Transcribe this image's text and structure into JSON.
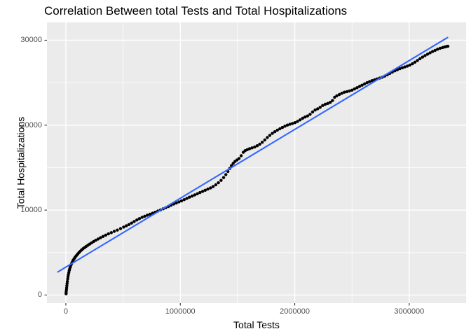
{
  "colors": {
    "background": "#FFFFFF",
    "panel_background": "#EBEBEB",
    "gridline": "#FFFFFF",
    "tick_mark": "#333333",
    "tick_label": "#4D4D4D",
    "axis_title": "#000000",
    "title": "#000000",
    "point": "#000000",
    "fit_line": "#3366FF"
  },
  "chart_data": {
    "type": "scatter",
    "title": "Correlation Between total Tests and Total Hospitalizations",
    "xlabel": "Total Tests",
    "ylabel": "Total Hospitalizations",
    "legend_position": "none",
    "grid": "white major and minor gridlines on gray panel",
    "xlim": [
      -165000,
      3500000
    ],
    "ylim": [
      -950,
      32100
    ],
    "x_ticks": {
      "values": [
        0,
        1000000,
        2000000,
        3000000
      ],
      "labels": [
        "0",
        "1000000",
        "2000000",
        "3000000"
      ]
    },
    "y_ticks": {
      "values": [
        0,
        10000,
        20000,
        30000
      ],
      "labels": [
        "0",
        "10000",
        "20000",
        "30000"
      ]
    },
    "x_minor_ticks": [
      500000,
      1500000,
      2500000,
      3500000
    ],
    "y_minor_ticks": [
      5000,
      15000,
      25000
    ],
    "series": [
      {
        "name": "observations",
        "type": "point",
        "color": "#000000",
        "point_radius": 2.2,
        "points": [
          [
            2000,
            150
          ],
          [
            3000,
            350
          ],
          [
            5000,
            600
          ],
          [
            7000,
            850
          ],
          [
            9000,
            1100
          ],
          [
            11000,
            1350
          ],
          [
            13000,
            1600
          ],
          [
            16000,
            1900
          ],
          [
            19000,
            2150
          ],
          [
            22000,
            2400
          ],
          [
            26000,
            2650
          ],
          [
            30000,
            2900
          ],
          [
            34000,
            3100
          ],
          [
            39000,
            3300
          ],
          [
            44000,
            3500
          ],
          [
            50000,
            3700
          ],
          [
            57000,
            3900
          ],
          [
            64000,
            4100
          ],
          [
            72000,
            4270
          ],
          [
            80000,
            4420
          ],
          [
            88000,
            4570
          ],
          [
            96000,
            4700
          ],
          [
            105000,
            4850
          ],
          [
            115000,
            5000
          ],
          [
            125000,
            5150
          ],
          [
            137000,
            5300
          ],
          [
            150000,
            5450
          ],
          [
            163000,
            5580
          ],
          [
            177000,
            5720
          ],
          [
            192000,
            5860
          ],
          [
            208000,
            6000
          ],
          [
            225000,
            6150
          ],
          [
            243000,
            6300
          ],
          [
            262000,
            6450
          ],
          [
            282000,
            6600
          ],
          [
            303000,
            6750
          ],
          [
            325000,
            6900
          ],
          [
            348000,
            7050
          ],
          [
            372000,
            7200
          ],
          [
            397000,
            7350
          ],
          [
            423000,
            7500
          ],
          [
            450000,
            7650
          ],
          [
            478000,
            7820
          ],
          [
            505000,
            8000
          ],
          [
            528000,
            8150
          ],
          [
            551000,
            8300
          ],
          [
            574000,
            8470
          ],
          [
            597000,
            8650
          ],
          [
            620000,
            8830
          ],
          [
            643000,
            9000
          ],
          [
            666000,
            9150
          ],
          [
            689000,
            9280
          ],
          [
            712000,
            9400
          ],
          [
            735000,
            9510
          ],
          [
            758000,
            9630
          ],
          [
            781000,
            9760
          ],
          [
            804000,
            9890
          ],
          [
            827000,
            10020
          ],
          [
            850000,
            10150
          ],
          [
            873000,
            10280
          ],
          [
            896000,
            10420
          ],
          [
            919000,
            10570
          ],
          [
            942000,
            10710
          ],
          [
            965000,
            10840
          ],
          [
            988000,
            10960
          ],
          [
            1011000,
            11090
          ],
          [
            1034000,
            11230
          ],
          [
            1057000,
            11380
          ],
          [
            1080000,
            11520
          ],
          [
            1103000,
            11650
          ],
          [
            1126000,
            11780
          ],
          [
            1149000,
            11920
          ],
          [
            1172000,
            12060
          ],
          [
            1195000,
            12200
          ],
          [
            1218000,
            12340
          ],
          [
            1241000,
            12480
          ],
          [
            1264000,
            12620
          ],
          [
            1287000,
            12780
          ],
          [
            1310000,
            12980
          ],
          [
            1333000,
            13220
          ],
          [
            1356000,
            13500
          ],
          [
            1378000,
            13830
          ],
          [
            1398000,
            14180
          ],
          [
            1416000,
            14550
          ],
          [
            1432000,
            14900
          ],
          [
            1447000,
            15230
          ],
          [
            1462000,
            15500
          ],
          [
            1478000,
            15720
          ],
          [
            1495000,
            15900
          ],
          [
            1513000,
            16080
          ],
          [
            1532000,
            16400
          ],
          [
            1550000,
            16800
          ],
          [
            1567000,
            17000
          ],
          [
            1585000,
            17120
          ],
          [
            1605000,
            17220
          ],
          [
            1627000,
            17320
          ],
          [
            1650000,
            17440
          ],
          [
            1672000,
            17580
          ],
          [
            1694000,
            17760
          ],
          [
            1716000,
            17990
          ],
          [
            1738000,
            18260
          ],
          [
            1760000,
            18540
          ],
          [
            1782000,
            18800
          ],
          [
            1804000,
            19030
          ],
          [
            1826000,
            19230
          ],
          [
            1848000,
            19410
          ],
          [
            1870000,
            19570
          ],
          [
            1892000,
            19730
          ],
          [
            1914000,
            19880
          ],
          [
            1936000,
            20010
          ],
          [
            1958000,
            20110
          ],
          [
            1980000,
            20200
          ],
          [
            2002000,
            20300
          ],
          [
            2024000,
            20440
          ],
          [
            2046000,
            20620
          ],
          [
            2068000,
            20810
          ],
          [
            2090000,
            20960
          ],
          [
            2112000,
            21080
          ],
          [
            2134000,
            21280
          ],
          [
            2156000,
            21550
          ],
          [
            2178000,
            21780
          ],
          [
            2200000,
            21920
          ],
          [
            2222000,
            22100
          ],
          [
            2244000,
            22320
          ],
          [
            2266000,
            22460
          ],
          [
            2288000,
            22560
          ],
          [
            2310000,
            22690
          ],
          [
            2330000,
            22900
          ],
          [
            2348000,
            23280
          ],
          [
            2368000,
            23460
          ],
          [
            2390000,
            23610
          ],
          [
            2412000,
            23760
          ],
          [
            2434000,
            23880
          ],
          [
            2456000,
            23950
          ],
          [
            2478000,
            24020
          ],
          [
            2500000,
            24120
          ],
          [
            2522000,
            24260
          ],
          [
            2544000,
            24410
          ],
          [
            2566000,
            24560
          ],
          [
            2588000,
            24710
          ],
          [
            2610000,
            24860
          ],
          [
            2632000,
            25000
          ],
          [
            2654000,
            25130
          ],
          [
            2676000,
            25240
          ],
          [
            2698000,
            25340
          ],
          [
            2720000,
            25440
          ],
          [
            2742000,
            25540
          ],
          [
            2764000,
            25650
          ],
          [
            2786000,
            25780
          ],
          [
            2808000,
            25930
          ],
          [
            2830000,
            26090
          ],
          [
            2852000,
            26250
          ],
          [
            2874000,
            26400
          ],
          [
            2896000,
            26530
          ],
          [
            2918000,
            26650
          ],
          [
            2940000,
            26760
          ],
          [
            2962000,
            26860
          ],
          [
            2984000,
            26960
          ],
          [
            3006000,
            27080
          ],
          [
            3028000,
            27230
          ],
          [
            3050000,
            27420
          ],
          [
            3072000,
            27620
          ],
          [
            3094000,
            27820
          ],
          [
            3116000,
            28010
          ],
          [
            3138000,
            28190
          ],
          [
            3160000,
            28360
          ],
          [
            3182000,
            28520
          ],
          [
            3204000,
            28670
          ],
          [
            3226000,
            28810
          ],
          [
            3248000,
            28940
          ],
          [
            3270000,
            29050
          ],
          [
            3292000,
            29140
          ],
          [
            3310000,
            29210
          ],
          [
            3325000,
            29260
          ],
          [
            3338000,
            29290
          ]
        ]
      },
      {
        "name": "linear-fit",
        "type": "line",
        "color": "#3366FF",
        "line_width": 2.1,
        "points": [
          [
            -70000,
            2720
          ],
          [
            3335000,
            30320
          ]
        ]
      }
    ]
  }
}
